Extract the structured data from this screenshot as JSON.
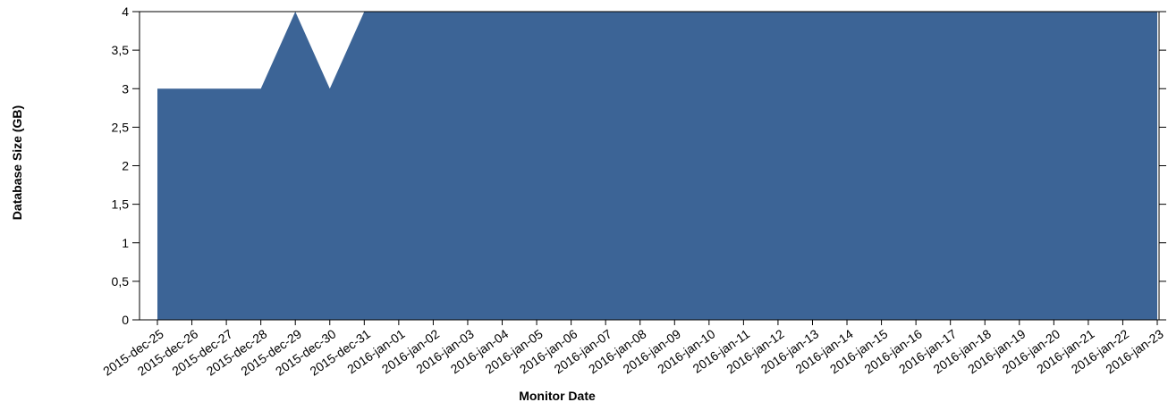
{
  "chart_data": {
    "type": "area",
    "title": "",
    "xlabel": "Monitor Date",
    "ylabel": "Database Size (GB)",
    "ylim": [
      0,
      4
    ],
    "yticks": [
      "0",
      "0,5",
      "1",
      "1,5",
      "2",
      "2,5",
      "3",
      "3,5",
      "4"
    ],
    "grid": false,
    "x": [
      "2015-dec-25",
      "2015-dec-26",
      "2015-dec-27",
      "2015-dec-28",
      "2015-dec-29",
      "2015-dec-30",
      "2015-dec-31",
      "2016-jan-01",
      "2016-jan-02",
      "2016-jan-03",
      "2016-jan-04",
      "2016-jan-05",
      "2016-jan-06",
      "2016-jan-07",
      "2016-jan-08",
      "2016-jan-09",
      "2016-jan-10",
      "2016-jan-11",
      "2016-jan-12",
      "2016-jan-13",
      "2016-jan-14",
      "2016-jan-15",
      "2016-jan-16",
      "2016-jan-17",
      "2016-jan-18",
      "2016-jan-19",
      "2016-jan-20",
      "2016-jan-21",
      "2016-jan-22",
      "2016-jan-23"
    ],
    "series": [
      {
        "values": [
          3,
          3,
          3,
          3,
          4,
          3,
          4,
          4,
          4,
          4,
          4,
          4,
          4,
          4,
          4,
          4,
          4,
          4,
          4,
          4,
          4,
          4,
          4,
          4,
          4,
          4,
          4,
          4,
          4,
          4
        ]
      }
    ],
    "colors": {
      "fill": "#3c6496",
      "axis": "#000000"
    }
  }
}
